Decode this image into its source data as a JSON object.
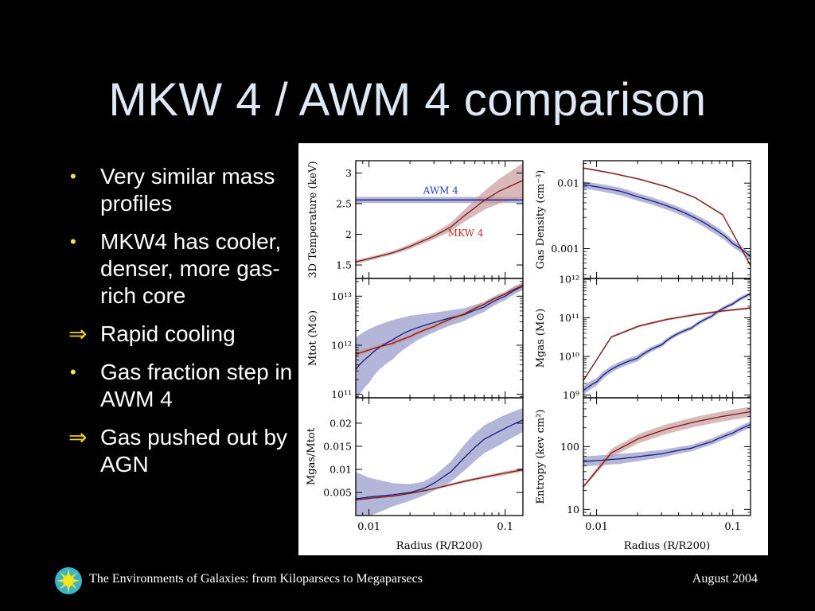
{
  "slide": {
    "title": "MKW 4 / AWM 4 comparison",
    "bullets": [
      {
        "marker": "•",
        "text": "Very similar mass profiles"
      },
      {
        "marker": "•",
        "text": "MKW4 has cooler, denser, more gas-rich core"
      },
      {
        "marker": "⇒",
        "text": "Rapid cooling"
      },
      {
        "marker": "•",
        "text": "Gas fraction step in AWM 4"
      },
      {
        "marker": "⇒",
        "text": " Gas pushed out by AGN"
      }
    ],
    "footer_text": "The Environments of Galaxies: from Kiloparsecs to Megaparsecs",
    "footer_date": "August 2004",
    "logo_icon": "sunburst-icon"
  },
  "colors": {
    "awm4_line": "#1c1c7a",
    "awm4_band": "#9a9ccc",
    "mkw4_line": "#7a1a1a",
    "mkw4_band": "#c89a9a",
    "awm4_label": "#2a3fbf",
    "mkw4_label": "#c0302a",
    "title_text": "#dfe9f5",
    "bullet_marker": "#ffd700"
  },
  "chart_data": [
    {
      "type": "line",
      "id": "temperature",
      "ylabel": "3D Temperature (keV)",
      "xscale": "log",
      "xlim": [
        0.008,
        0.135
      ],
      "yscale": "linear",
      "ylim": [
        1.28,
        3.2
      ],
      "yticks": [
        1.5,
        2,
        2.5,
        3
      ],
      "yticklabels": [
        "1.5",
        "2",
        "2.5",
        "3"
      ],
      "xticks": [
        0.01,
        0.1
      ],
      "xticklabels": [],
      "annotations": [
        {
          "text": "AWM 4",
          "series": "AWM 4",
          "x": 0.025,
          "y": 2.66
        },
        {
          "text": "MKW 4",
          "series": "MKW 4",
          "x": 0.038,
          "y": 1.97
        }
      ],
      "series": [
        {
          "name": "AWM 4",
          "x": [
            0.008,
            0.135
          ],
          "y": [
            2.56,
            2.56
          ],
          "band": [
            0.05,
            0.05
          ]
        },
        {
          "name": "MKW 4",
          "x": [
            0.008,
            0.01,
            0.015,
            0.02,
            0.03,
            0.04,
            0.05,
            0.07,
            0.09,
            0.135
          ],
          "y": [
            1.55,
            1.6,
            1.7,
            1.8,
            1.97,
            2.12,
            2.3,
            2.55,
            2.7,
            2.88
          ],
          "band": [
            0.03,
            0.03,
            0.03,
            0.04,
            0.05,
            0.07,
            0.1,
            0.15,
            0.2,
            0.28
          ]
        }
      ]
    },
    {
      "type": "line",
      "id": "gas-density",
      "ylabel": "Gas Density (cm⁻³)",
      "xscale": "log",
      "xlim": [
        0.008,
        0.135
      ],
      "yscale": "log",
      "ylim": [
        0.00035,
        0.022
      ],
      "yticks": [
        0.001,
        0.01
      ],
      "yticklabels": [
        "0.001",
        "0.01"
      ],
      "xticks": [
        0.01,
        0.1
      ],
      "xticklabels": [],
      "series": [
        {
          "name": "AWM 4",
          "x": [
            0.008,
            0.01,
            0.015,
            0.02,
            0.03,
            0.05,
            0.07,
            0.1,
            0.135
          ],
          "y": [
            0.0095,
            0.0088,
            0.0075,
            0.0062,
            0.0048,
            0.0031,
            0.0021,
            0.0012,
            0.00075
          ],
          "band": [
            0.0012,
            0.0011,
            0.001,
            0.0008,
            0.0006,
            0.0004,
            0.0003,
            0.00015,
            8e-05
          ]
        },
        {
          "name": "MKW 4",
          "x": [
            0.008,
            0.135
          ],
          "y": [
            0.017,
            0.00055
          ],
          "band": [
            0.0005,
            3e-05
          ]
        }
      ]
    },
    {
      "type": "line",
      "id": "total-mass",
      "ylabel": "Mtot (M⊙)",
      "xscale": "log",
      "xlim": [
        0.008,
        0.135
      ],
      "yscale": "log",
      "ylim": [
        85000000000,
        23000000000000
      ],
      "yticks": [
        100000000000,
        1000000000000,
        10000000000000
      ],
      "yticklabels": [
        "10¹¹",
        "10¹²",
        "10¹³"
      ],
      "xticks": [
        0.01,
        0.1
      ],
      "xticklabels": [],
      "series": [
        {
          "name": "AWM 4",
          "x": [
            0.008,
            0.01,
            0.015,
            0.02,
            0.03,
            0.05,
            0.07,
            0.1,
            0.135
          ],
          "y": [
            320000000000,
            600000000000,
            1300000000000,
            2000000000000,
            2900000000000,
            4200000000000,
            6000000000000,
            10000000000000,
            16000000000000
          ],
          "band": [
            0.65,
            0.55,
            0.4,
            0.3,
            0.2,
            0.13,
            0.1,
            0.08,
            0.08
          ]
        },
        {
          "name": "MKW 4",
          "x": [
            0.008,
            0.01,
            0.015,
            0.02,
            0.03,
            0.05,
            0.07,
            0.1,
            0.135
          ],
          "y": [
            650000000000,
            800000000000,
            1100000000000,
            1500000000000,
            2400000000000,
            4300000000000,
            6800000000000,
            11000000000000,
            16500000000000
          ],
          "band": [
            0.05,
            0.05,
            0.05,
            0.05,
            0.05,
            0.05,
            0.05,
            0.05,
            0.05
          ]
        }
      ]
    },
    {
      "type": "line",
      "id": "gas-mass",
      "ylabel": "Mgas (M⊙)",
      "xscale": "log",
      "xlim": [
        0.008,
        0.135
      ],
      "yscale": "log",
      "ylim": [
        850000000,
        1050000000000
      ],
      "yticks": [
        1000000000,
        10000000000,
        100000000000,
        1000000000000
      ],
      "yticklabels": [
        "10⁹",
        "10¹⁰",
        "10¹¹",
        "10¹²"
      ],
      "xticks": [
        0.01,
        0.1
      ],
      "xticklabels": [],
      "series": [
        {
          "name": "AWM 4",
          "x": [
            0.008,
            0.01,
            0.02,
            0.03,
            0.05,
            0.07,
            0.1,
            0.135
          ],
          "y": [
            1300000000,
            2200000000,
            9000000000,
            20000000000,
            55000000000,
            110000000000,
            230000000000,
            420000000000
          ],
          "band": [
            0.12,
            0.1,
            0.08,
            0.06,
            0.05,
            0.05,
            0.05,
            0.05
          ]
        },
        {
          "name": "MKW 4",
          "x": [
            0.008,
            0.135
          ],
          "y": [
            2400000000,
            180000000000
          ],
          "band": [
            0.03,
            0.03
          ]
        }
      ]
    },
    {
      "type": "line",
      "id": "gas-fraction",
      "ylabel": "Mgas/Mtot",
      "xscale": "log",
      "xlim": [
        0.008,
        0.135
      ],
      "yscale": "linear",
      "ylim": [
        0,
        0.0255
      ],
      "yticks": [
        0.005,
        0.01,
        0.015,
        0.02
      ],
      "yticklabels": [
        "0.005",
        "0.01",
        "0.015",
        "0.02"
      ],
      "xticks": [
        0.01,
        0.1
      ],
      "xticklabels": [
        "0.01",
        "0.1"
      ],
      "xlabel": "Radius (R/R200)",
      "series": [
        {
          "name": "AWM 4",
          "x": [
            0.008,
            0.01,
            0.015,
            0.02,
            0.025,
            0.03,
            0.04,
            0.05,
            0.06,
            0.07,
            0.09,
            0.11,
            0.135
          ],
          "y": [
            0.0036,
            0.004,
            0.0045,
            0.005,
            0.0058,
            0.007,
            0.0095,
            0.0125,
            0.0148,
            0.0165,
            0.0182,
            0.0195,
            0.0207
          ],
          "band": [
            0.0058,
            0.0042,
            0.0025,
            0.0018,
            0.0015,
            0.0016,
            0.0022,
            0.0028,
            0.003,
            0.003,
            0.003,
            0.0028,
            0.0026
          ]
        },
        {
          "name": "MKW 4",
          "x": [
            0.008,
            0.01,
            0.015,
            0.02,
            0.03,
            0.04,
            0.05,
            0.07,
            0.1,
            0.135
          ],
          "y": [
            0.0034,
            0.0037,
            0.0042,
            0.0048,
            0.0058,
            0.0067,
            0.0074,
            0.0083,
            0.0092,
            0.0099
          ],
          "band": [
            0.0002,
            0.0002,
            0.0002,
            0.0002,
            0.0002,
            0.0003,
            0.0003,
            0.0003,
            0.0004,
            0.0004
          ]
        }
      ]
    },
    {
      "type": "line",
      "id": "entropy",
      "ylabel": "Entropy (kev cm²)",
      "xscale": "log",
      "xlim": [
        0.008,
        0.135
      ],
      "yscale": "log",
      "ylim": [
        8,
        600
      ],
      "yticks": [
        10,
        100
      ],
      "yticklabels": [
        "10",
        "100"
      ],
      "xticks": [
        0.01,
        0.1
      ],
      "xticklabels": [
        "0.01",
        "0.1"
      ],
      "xlabel": "Radius (R/R200)",
      "series": [
        {
          "name": "AWM 4",
          "x": [
            0.008,
            0.01,
            0.015,
            0.02,
            0.03,
            0.05,
            0.07,
            0.1,
            0.135
          ],
          "y": [
            58,
            60,
            64,
            69,
            77,
            95,
            120,
            165,
            225
          ],
          "band": [
            0.08,
            0.08,
            0.08,
            0.07,
            0.06,
            0.05,
            0.05,
            0.05,
            0.05
          ]
        },
        {
          "name": "MKW 4",
          "x": [
            0.008,
            0.135
          ],
          "y": [
            23,
            360
          ],
          "band": [
            0.02,
            0.08
          ]
        }
      ]
    }
  ]
}
